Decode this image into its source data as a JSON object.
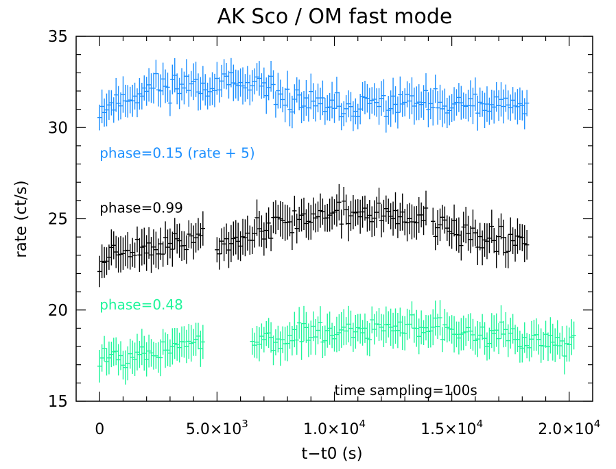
{
  "chart_data": {
    "type": "scatter",
    "title": "AK Sco / OM fast mode",
    "xlabel": "t−t0 (s)",
    "ylabel": "rate (ct/s)",
    "xlim": [
      -1000,
      21000
    ],
    "ylim": [
      15,
      35
    ],
    "x_ticks": [
      {
        "value": 0,
        "label": "0"
      },
      {
        "value": 5000,
        "label": "5.0×10",
        "exp": "3"
      },
      {
        "value": 10000,
        "label": "1.0×10",
        "exp": "4"
      },
      {
        "value": 15000,
        "label": "1.5×10",
        "exp": "4"
      },
      {
        "value": 20000,
        "label": "2.0×10",
        "exp": "4"
      }
    ],
    "y_ticks": [
      15,
      20,
      25,
      30,
      35
    ],
    "error_bars": true,
    "annotations": [
      {
        "text": "time sampling=100s",
        "x": 10000,
        "y": 15.6,
        "color": "#000000"
      }
    ],
    "series": [
      {
        "name": "phase=0.15 (rate + 5)",
        "color": "#1e90ff",
        "label_pos": {
          "x": 0,
          "y": 28.6
        },
        "segments": [
          {
            "x0": 0,
            "x1": 18200,
            "base": [
              [
                0,
                31.0
              ],
              [
                2500,
                32.3
              ],
              [
                5000,
                32.4
              ],
              [
                6500,
                32.2
              ],
              [
                8000,
                31.6
              ],
              [
                10000,
                31.0
              ],
              [
                12000,
                31.3
              ],
              [
                13500,
                31.4
              ],
              [
                14500,
                31.1
              ],
              [
                16000,
                31.2
              ],
              [
                18200,
                31.1
              ]
            ],
            "amp": 0.55,
            "err": 0.85,
            "seed": 11
          }
        ]
      },
      {
        "name": "phase=0.99",
        "color": "#000000",
        "label_pos": {
          "x": 0,
          "y": 25.6
        },
        "segments": [
          {
            "x0": 0,
            "x1": 4400,
            "base": [
              [
                0,
                22.3
              ],
              [
                500,
                23.3
              ],
              [
                2000,
                23.4
              ],
              [
                3500,
                23.6
              ],
              [
                4400,
                24.2
              ]
            ],
            "amp": 0.45,
            "err": 0.85,
            "seed": 23
          },
          {
            "x0": 5000,
            "x1": 13900,
            "base": [
              [
                5000,
                23.6
              ],
              [
                6500,
                24.3
              ],
              [
                8000,
                24.9
              ],
              [
                9500,
                25.2
              ],
              [
                11000,
                25.3
              ],
              [
                12500,
                25.1
              ],
              [
                13900,
                25.0
              ]
            ],
            "amp": 0.5,
            "err": 0.85,
            "seed": 37
          },
          {
            "x0": 14200,
            "x1": 18200,
            "base": [
              [
                14200,
                24.4
              ],
              [
                16000,
                24.1
              ],
              [
                18200,
                23.8
              ]
            ],
            "amp": 0.55,
            "err": 0.85,
            "seed": 41
          }
        ]
      },
      {
        "name": "phase=0.48",
        "color": "#1ef59a",
        "label_pos": {
          "x": 0,
          "y": 20.3
        },
        "segments": [
          {
            "x0": 0,
            "x1": 4400,
            "base": [
              [
                0,
                17.6
              ],
              [
                2000,
                17.6
              ],
              [
                4400,
                18.3
              ]
            ],
            "amp": 0.5,
            "err": 0.85,
            "seed": 53
          },
          {
            "x0": 6500,
            "x1": 20200,
            "base": [
              [
                6500,
                18.4
              ],
              [
                8500,
                18.6
              ],
              [
                11000,
                18.9
              ],
              [
                13500,
                19.1
              ],
              [
                16000,
                18.9
              ],
              [
                18500,
                18.4
              ],
              [
                20200,
                18.2
              ]
            ],
            "amp": 0.5,
            "err": 0.85,
            "seed": 67
          }
        ]
      }
    ]
  }
}
